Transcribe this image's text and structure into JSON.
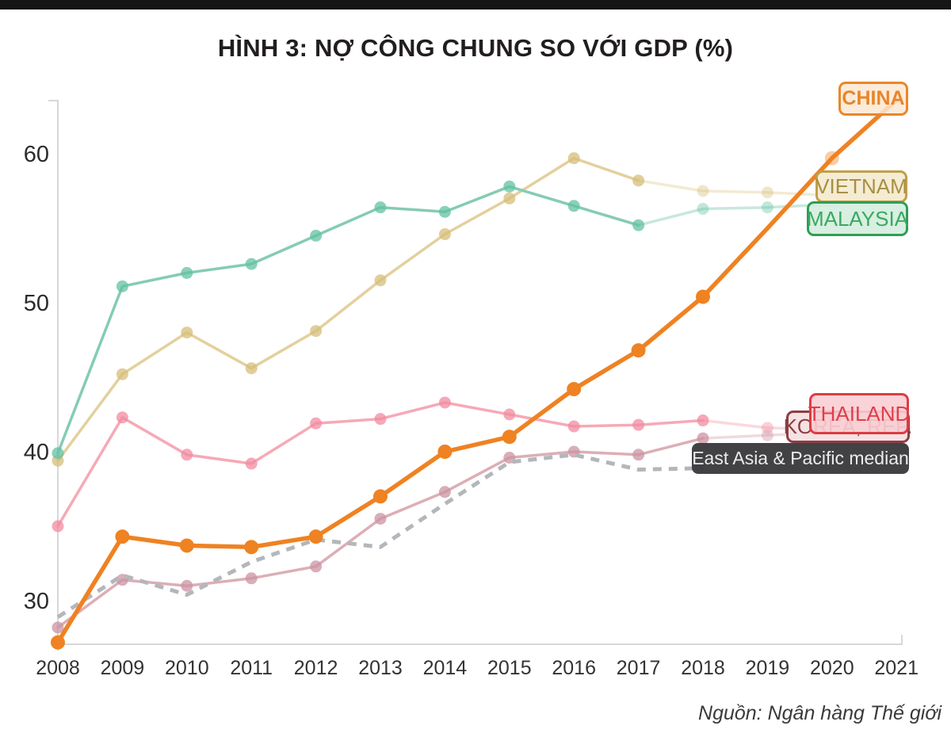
{
  "page": {
    "title": "HÌNH 3: NỢ CÔNG CHUNG SO VỚI GDP (%)",
    "source": "Nguồn: Ngân hàng Thế giới"
  },
  "chart_data": {
    "type": "line",
    "title": "HÌNH 3: NỢ CÔNG CHUNG SO VỚI GDP (%)",
    "xlabel": "",
    "ylabel": "",
    "x": [
      2008,
      2009,
      2010,
      2011,
      2012,
      2013,
      2014,
      2015,
      2016,
      2017,
      2018,
      2019,
      2020,
      2021
    ],
    "yticks": [
      30,
      40,
      50,
      60
    ],
    "ylim": [
      27,
      63.7
    ],
    "grid": false,
    "legend_position": "inline-right-labels",
    "axis_color": "#cbcbcb",
    "series": [
      {
        "id": "vietnam",
        "label": "VIETNAM",
        "color": "#e4d09c",
        "dot_color": "#d6bd7a",
        "dot_opacity": 0.75,
        "line_width": 3.5,
        "dot_radius": 7.5,
        "fade_from": 9,
        "dots_until": 9,
        "faded_dots": [
          10,
          11
        ],
        "style": "solid",
        "values": [
          39.4,
          45.2,
          48.0,
          45.6,
          48.1,
          51.5,
          54.6,
          57.0,
          59.7,
          58.2,
          57.5,
          57.4,
          57.2,
          57.3
        ]
      },
      {
        "id": "malaysia",
        "label": "MALAYSIA",
        "color": "#85ccb2",
        "dot_color": "#63c2a2",
        "dot_opacity": 0.75,
        "line_width": 3.5,
        "dot_radius": 7.5,
        "fade_from": 9,
        "dots_until": 9,
        "faded_dots": [
          10,
          11
        ],
        "style": "solid",
        "values": [
          39.9,
          51.1,
          52.0,
          52.6,
          54.5,
          56.4,
          56.1,
          57.8,
          56.5,
          55.2,
          56.3,
          56.4,
          56.6,
          57.0
        ]
      },
      {
        "id": "korea",
        "label": "KOREA, REP.",
        "color": "#dcaeb6",
        "dot_color": "#cb93a1",
        "dot_opacity": 0.75,
        "line_width": 3.5,
        "dot_radius": 7.5,
        "fade_from": 10,
        "dots_until": 10,
        "faded_dots": [
          11
        ],
        "style": "solid",
        "values": [
          28.2,
          31.4,
          31.0,
          31.5,
          32.3,
          35.5,
          37.3,
          39.6,
          40.0,
          39.8,
          40.9,
          41.1,
          41.3,
          41.3
        ]
      },
      {
        "id": "eap-median",
        "label": "East Asia & Pacific median",
        "color": "#b3b7bb",
        "line_width": 5,
        "dot_radius": 0,
        "dots_until": -1,
        "faded_dots": [],
        "style": "dashed",
        "dash": "11 9",
        "values": [
          28.9,
          31.7,
          30.4,
          32.6,
          34.1,
          33.6,
          36.5,
          39.3,
          39.8,
          38.8,
          38.9,
          null,
          null,
          null
        ]
      },
      {
        "id": "thailand",
        "label": "THAILAND",
        "color": "#f6a9b6",
        "dot_color": "#f18ba0",
        "dot_opacity": 0.75,
        "line_width": 3.5,
        "dot_radius": 7.5,
        "fade_from": 10,
        "dots_until": 10,
        "faded_dots": [
          11
        ],
        "style": "solid",
        "values": [
          35.0,
          42.3,
          39.8,
          39.2,
          41.9,
          42.2,
          43.3,
          42.5,
          41.7,
          41.8,
          42.1,
          41.6,
          41.5,
          41.5
        ]
      },
      {
        "id": "china",
        "label": "CHINA",
        "color": "#ef8222",
        "dot_color": "#ef8222",
        "dot_opacity": 1,
        "line_width": 5.5,
        "dot_radius": 9,
        "dots_until": 10,
        "faded_dots": [
          12
        ],
        "style": "solid",
        "values": [
          27.2,
          34.3,
          33.7,
          33.6,
          34.3,
          37.0,
          40.0,
          41.0,
          44.2,
          46.8,
          50.4,
          55.0,
          59.7,
          63.6
        ]
      }
    ]
  }
}
